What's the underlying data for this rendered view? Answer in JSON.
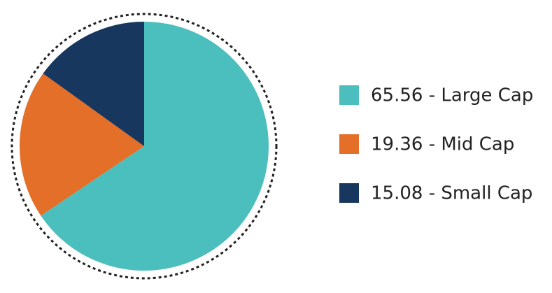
{
  "chart_data": {
    "type": "pie",
    "categories": [
      "65.56 - Large Cap",
      "19.36 - Mid Cap",
      "15.08 - Small Cap"
    ],
    "values": [
      65.56,
      19.36,
      15.08
    ],
    "colors": [
      "#4bbfbe",
      "#e36f28",
      "#17375e"
    ]
  }
}
